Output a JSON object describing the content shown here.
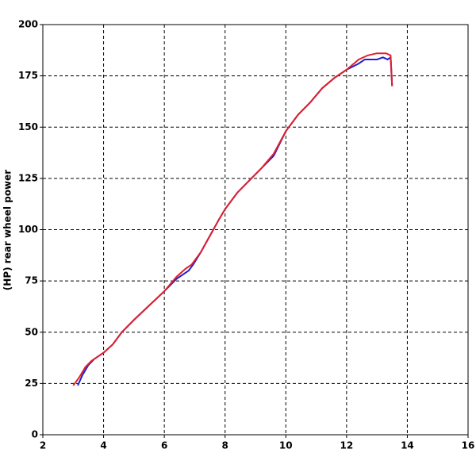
{
  "chart_data": {
    "type": "line",
    "y_label": "(HP) rear wheel power",
    "xlim": [
      2,
      16
    ],
    "xticks": [
      2,
      4,
      6,
      8,
      10,
      12,
      14,
      16
    ],
    "ylim": [
      0,
      200
    ],
    "yticks": [
      0,
      25,
      50,
      75,
      100,
      125,
      150,
      175,
      200
    ],
    "grid": true,
    "series": [
      {
        "color": "#1f1fcc",
        "x": [
          3.15,
          3.3,
          3.5,
          3.7,
          3.9,
          4.0,
          4.3,
          4.6,
          5.0,
          5.5,
          6.0,
          6.4,
          6.8,
          6.95,
          7.2,
          7.5,
          7.8,
          8.0,
          8.4,
          8.8,
          9.2,
          9.6,
          10.0,
          10.4,
          10.8,
          11.2,
          11.6,
          12.0,
          12.4,
          12.6,
          13.0,
          13.2,
          13.35,
          13.45,
          13.5
        ],
        "values": [
          24,
          29,
          34,
          37,
          39,
          40,
          44,
          50,
          56,
          63,
          70,
          76,
          80,
          83,
          89,
          97,
          105,
          110,
          118,
          124,
          130,
          136,
          148,
          156,
          162,
          169,
          174,
          178,
          181,
          183,
          183,
          184,
          183,
          184,
          170
        ]
      },
      {
        "color": "#e0202a",
        "x": [
          3.0,
          3.2,
          3.4,
          3.6,
          3.8,
          4.0,
          4.3,
          4.6,
          5.0,
          5.5,
          6.0,
          6.4,
          6.7,
          6.9,
          7.2,
          7.5,
          7.8,
          8.0,
          8.4,
          8.8,
          9.2,
          9.6,
          10.0,
          10.4,
          10.8,
          11.2,
          11.6,
          12.0,
          12.4,
          12.7,
          13.0,
          13.3,
          13.45,
          13.5
        ],
        "values": [
          24,
          28,
          33,
          36,
          38,
          40,
          44,
          50,
          56,
          63,
          70,
          77,
          81,
          83,
          89,
          97,
          105,
          110,
          118,
          124,
          130,
          137,
          148,
          156,
          162,
          169,
          174,
          178,
          183,
          185,
          186,
          186,
          185,
          170
        ]
      }
    ]
  }
}
